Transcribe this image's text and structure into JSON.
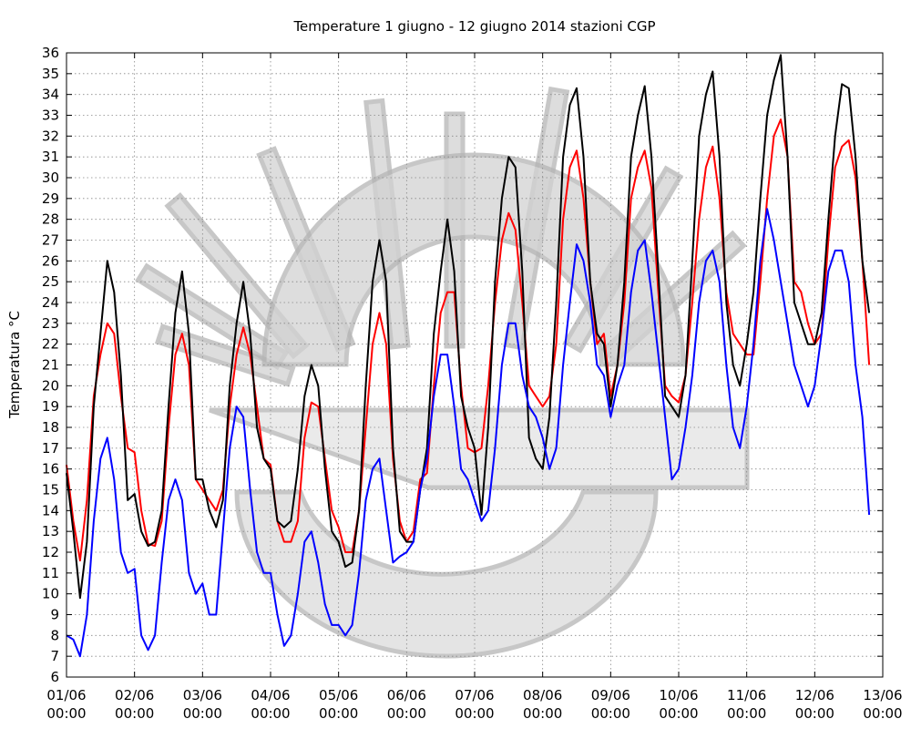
{
  "chart_data": {
    "type": "line",
    "title": "Temperature 1 giugno - 12 giugno 2014 stazioni CGP",
    "ylabel": "Temperatura °C",
    "xlabel": "",
    "ylim": [
      6,
      36
    ],
    "yticks": [
      6,
      7,
      8,
      9,
      10,
      11,
      12,
      13,
      14,
      15,
      16,
      17,
      18,
      19,
      20,
      21,
      22,
      23,
      24,
      25,
      26,
      27,
      28,
      29,
      30,
      31,
      32,
      33,
      34,
      35,
      36
    ],
    "xlim_days": [
      0,
      12
    ],
    "xtick_labels": [
      [
        "01/06",
        "00:00"
      ],
      [
        "02/06",
        "00:00"
      ],
      [
        "03/06",
        "00:00"
      ],
      [
        "04/06",
        "00:00"
      ],
      [
        "05/06",
        "00:00"
      ],
      [
        "06/06",
        "00:00"
      ],
      [
        "07/06",
        "00:00"
      ],
      [
        "08/06",
        "00:00"
      ],
      [
        "09/06",
        "00:00"
      ],
      [
        "10/06",
        "00:00"
      ],
      [
        "11/06",
        "00:00"
      ],
      [
        "12/06",
        "00:00"
      ],
      [
        "13/06",
        "00:00"
      ]
    ],
    "grid": true,
    "x_days": [
      0,
      0.1,
      0.2,
      0.3,
      0.4,
      0.5,
      0.6,
      0.7,
      0.8,
      0.9,
      1,
      1.1,
      1.2,
      1.3,
      1.4,
      1.5,
      1.6,
      1.7,
      1.8,
      1.9,
      2,
      2.1,
      2.2,
      2.3,
      2.4,
      2.5,
      2.6,
      2.7,
      2.8,
      2.9,
      3,
      3.1,
      3.2,
      3.3,
      3.4,
      3.5,
      3.6,
      3.7,
      3.8,
      3.9,
      4,
      4.1,
      4.2,
      4.3,
      4.4,
      4.5,
      4.6,
      4.7,
      4.8,
      4.9,
      5,
      5.1,
      5.2,
      5.3,
      5.4,
      5.5,
      5.6,
      5.7,
      5.8,
      5.9,
      6,
      6.1,
      6.2,
      6.3,
      6.4,
      6.5,
      6.6,
      6.7,
      6.8,
      6.9,
      7,
      7.1,
      7.2,
      7.3,
      7.4,
      7.5,
      7.6,
      7.7,
      7.8,
      7.9,
      8,
      8.1,
      8.2,
      8.3,
      8.4,
      8.5,
      8.6,
      8.7,
      8.8,
      8.9,
      9,
      9.1,
      9.2,
      9.3,
      9.4,
      9.5,
      9.6,
      9.7,
      9.8,
      9.9,
      10,
      10.1,
      10.2,
      10.3,
      10.4,
      10.5,
      10.6,
      10.7,
      10.8,
      10.9,
      11,
      11.1,
      11.2,
      11.3,
      11.4,
      11.5,
      11.6,
      11.7,
      11.8,
      11.9,
      12
    ],
    "series": [
      {
        "color": "#ff0000",
        "values": [
          16.2,
          13.5,
          11.6,
          14.5,
          19.5,
          21.5,
          23.0,
          22.5,
          19.5,
          17.0,
          16.8,
          14.0,
          12.4,
          12.3,
          13.5,
          18.0,
          21.5,
          22.5,
          21.0,
          15.5,
          15.0,
          14.5,
          14.0,
          15.0,
          19.0,
          21.5,
          22.8,
          21.5,
          19.0,
          16.5,
          16.2,
          13.5,
          12.5,
          12.5,
          13.5,
          17.5,
          19.2,
          19.0,
          16.5,
          14.0,
          13.2,
          12.0,
          12.0,
          14.0,
          18.0,
          22.0,
          23.5,
          22.0,
          16.5,
          13.5,
          12.5,
          13.0,
          15.5,
          15.8,
          20.0,
          23.5,
          24.5,
          24.5,
          20.0,
          17.0,
          16.8,
          17.0,
          20.0,
          24.0,
          27.0,
          28.3,
          27.5,
          24.0,
          20.0,
          19.5,
          19.0,
          19.5,
          22.0,
          28.0,
          30.5,
          31.3,
          29.0,
          25.0,
          22.0,
          22.5,
          19.5,
          21.0,
          24.0,
          29.0,
          30.5,
          31.3,
          29.5,
          24.5,
          20.0,
          19.5,
          19.2,
          20.5,
          24.0,
          28.0,
          30.5,
          31.5,
          29.0,
          24.5,
          22.5,
          22.0,
          21.5,
          21.5,
          25.0,
          29.0,
          32.0,
          32.8,
          31.0,
          25.0,
          24.5,
          23.0,
          22.0,
          22.5,
          27.0,
          30.5,
          31.5,
          31.8,
          30.0,
          26.0,
          21.0
        ]
      },
      {
        "color": "#000000",
        "values": [
          15.8,
          13.0,
          9.8,
          12.5,
          19.0,
          22.5,
          26.0,
          24.5,
          20.5,
          14.5,
          14.8,
          13.0,
          12.3,
          12.5,
          14.0,
          19.0,
          23.5,
          25.5,
          22.5,
          15.5,
          15.5,
          14.0,
          13.2,
          14.5,
          20.0,
          23.0,
          25.0,
          22.5,
          18.0,
          16.5,
          16.0,
          13.5,
          13.2,
          13.5,
          16.0,
          19.5,
          21.0,
          20.0,
          16.0,
          13.0,
          12.5,
          11.3,
          11.5,
          14.0,
          20.0,
          25.0,
          27.0,
          25.0,
          17.0,
          13.0,
          12.5,
          12.5,
          15.0,
          17.0,
          22.5,
          25.5,
          28.0,
          25.5,
          19.5,
          18.0,
          17.0,
          13.8,
          18.0,
          25.0,
          29.0,
          31.0,
          30.5,
          25.5,
          17.5,
          16.5,
          16.0,
          18.5,
          24.0,
          31.0,
          33.5,
          34.3,
          31.0,
          25.0,
          22.5,
          22.0,
          19.0,
          21.0,
          25.0,
          31.0,
          33.0,
          34.4,
          31.0,
          25.5,
          19.5,
          19.0,
          18.5,
          20.5,
          26.0,
          32.0,
          34.0,
          35.1,
          31.0,
          24.0,
          21.0,
          20.0,
          22.0,
          24.5,
          29.0,
          33.0,
          34.7,
          35.9,
          31.0,
          24.0,
          23.0,
          22.0,
          22.0,
          23.5,
          28.0,
          32.0,
          34.5,
          34.3,
          31.0,
          26.0,
          23.5
        ]
      },
      {
        "color": "#0000ff",
        "values": [
          8.0,
          7.8,
          7.0,
          9.0,
          13.5,
          16.5,
          17.5,
          15.5,
          12.0,
          11.0,
          11.2,
          8.0,
          7.3,
          8.0,
          11.5,
          14.5,
          15.5,
          14.5,
          11.0,
          10.0,
          10.5,
          9.0,
          9.0,
          13.0,
          17.0,
          19.0,
          18.5,
          15.0,
          12.0,
          11.0,
          11.0,
          9.0,
          7.5,
          8.0,
          10.0,
          12.5,
          13.0,
          11.5,
          9.5,
          8.5,
          8.5,
          8.0,
          8.5,
          11.0,
          14.5,
          16.0,
          16.5,
          14.0,
          11.5,
          11.8,
          12.0,
          12.5,
          15.0,
          16.5,
          19.5,
          21.5,
          21.5,
          19.0,
          16.0,
          15.5,
          14.5,
          13.5,
          14.0,
          17.0,
          21.0,
          23.0,
          23.0,
          20.5,
          19.0,
          18.5,
          17.5,
          16.0,
          17.0,
          21.0,
          24.0,
          26.8,
          26.0,
          24.0,
          21.0,
          20.5,
          18.5,
          20.0,
          21.0,
          24.5,
          26.5,
          27.0,
          24.5,
          21.5,
          18.5,
          15.5,
          16.0,
          18.0,
          20.5,
          24.0,
          26.0,
          26.5,
          25.0,
          21.0,
          18.0,
          17.0,
          19.0,
          22.0,
          26.0,
          28.5,
          27.0,
          25.0,
          23.0,
          21.0,
          20.0,
          19.0,
          20.0,
          22.5,
          25.5,
          26.5,
          26.5,
          25.0,
          21.0,
          18.5,
          13.8
        ]
      }
    ]
  }
}
